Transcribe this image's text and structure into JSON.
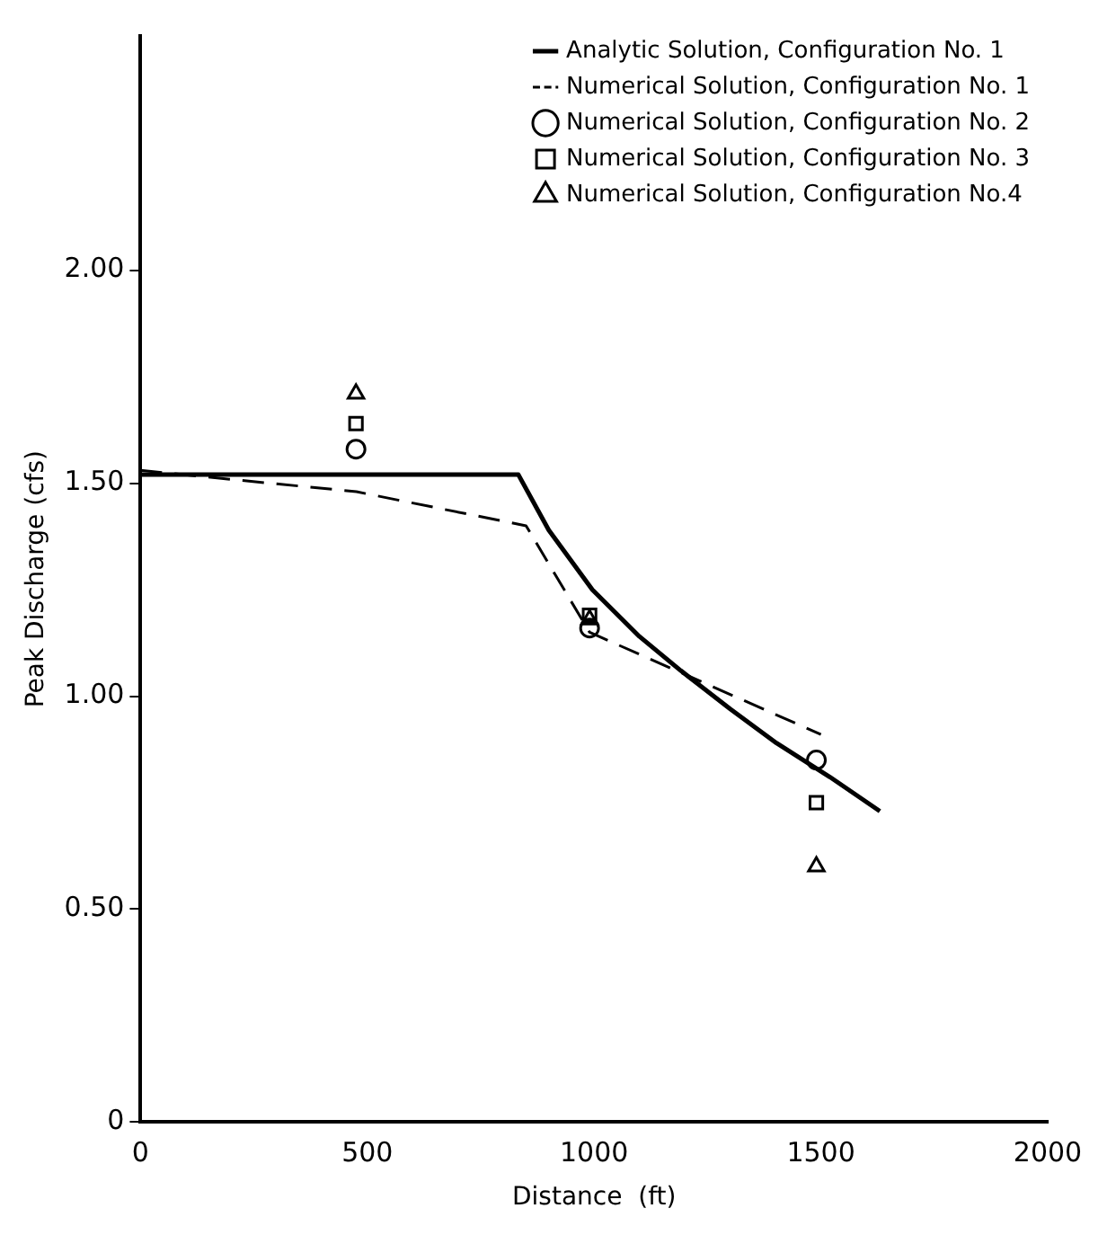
{
  "chart_data": {
    "type": "line",
    "xlabel": "Distance  (ft)",
    "ylabel": "Peak Discharge (cfs)",
    "xlim": [
      0,
      2000
    ],
    "xticks": [
      0,
      500,
      1000,
      1500,
      2000
    ],
    "ylim": [
      0,
      2.55
    ],
    "yticks": [
      {
        "value": 0,
        "label": "0"
      },
      {
        "value": 0.5,
        "label": "0.50"
      },
      {
        "value": 1,
        "label": "1.00"
      },
      {
        "value": 1.5,
        "label": "1.50"
      },
      {
        "value": 2,
        "label": "2.00"
      }
    ],
    "grid": false,
    "legend": "top right",
    "series": [
      {
        "name": "Analytic Solution, Configuration No. 1",
        "color": "#000000",
        "line_style": "solid",
        "marker": "none",
        "x": [
          0,
          833,
          900,
          996,
          1100,
          1191,
          1300,
          1402,
          1520,
          1630
        ],
        "values": [
          1.52,
          1.52,
          1.39,
          1.25,
          1.14,
          1.06,
          0.97,
          0.89,
          0.81,
          0.73
        ]
      },
      {
        "name": "Numerical Solution, Configuration No. 1",
        "color": "#000000",
        "line_style": "dashed",
        "marker": "none",
        "x": [
          0,
          476,
          850,
          990,
          1500
        ],
        "values": [
          1.53,
          1.48,
          1.4,
          1.15,
          0.91
        ]
      },
      {
        "name": "Numerical Solution, Configuration No. 2",
        "type": "scatter",
        "color": "#000000",
        "marker": "circle",
        "x": [
          475,
          990,
          1490
        ],
        "values": [
          1.58,
          1.16,
          0.85
        ]
      },
      {
        "name": "Numerical Solution, Configuration No. 3",
        "type": "scatter",
        "color": "#000000",
        "marker": "square",
        "x": [
          475,
          990,
          1490
        ],
        "values": [
          1.64,
          1.19,
          0.75
        ]
      },
      {
        "name": "Numerical Solution, Configuration No.4",
        "type": "scatter",
        "color": "#000000",
        "marker": "triangle",
        "x": [
          475,
          990,
          1490
        ],
        "values": [
          1.71,
          1.18,
          0.6
        ]
      }
    ]
  }
}
